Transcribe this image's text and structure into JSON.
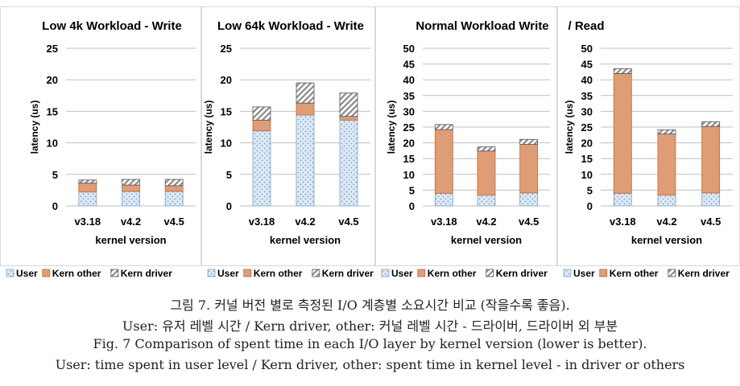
{
  "colors": {
    "user": "#dce9f7",
    "user_edge": "#7f9fc0",
    "kern_other": "#e3a27a",
    "kern_other_edge": "#b9693f",
    "kern_driver": "#9a9a9a",
    "axis": "#bfbfbf"
  },
  "chart_data": [
    {
      "type": "bar",
      "stacked": true,
      "title": "Low 4k Workload - Write",
      "xlabel": "kernel version",
      "ylabel": "latency (us)",
      "ylim": [
        0,
        25
      ],
      "yticks": [
        0,
        5,
        10,
        15,
        20,
        25
      ],
      "categories": [
        "v3.18",
        "v4.2",
        "v4.5"
      ],
      "series": [
        {
          "name": "User",
          "values": [
            2.2,
            2.3,
            2.3
          ]
        },
        {
          "name": "Kern other",
          "values": [
            1.4,
            1.0,
            0.9
          ]
        },
        {
          "name": "Kern driver",
          "values": [
            0.5,
            0.9,
            1.0
          ]
        }
      ],
      "legend": "bottom"
    },
    {
      "type": "bar",
      "stacked": true,
      "title": "Low 64k Workload - Write",
      "xlabel": "kernel version",
      "ylabel": "latency (us)",
      "ylim": [
        0,
        25
      ],
      "yticks": [
        0,
        5,
        10,
        15,
        20,
        25
      ],
      "categories": [
        "v3.18",
        "v4.2",
        "v4.5"
      ],
      "series": [
        {
          "name": "User",
          "values": [
            11.9,
            14.4,
            13.6
          ]
        },
        {
          "name": "Kern other",
          "values": [
            1.7,
            1.9,
            0.6
          ]
        },
        {
          "name": "Kern driver",
          "values": [
            2.1,
            3.2,
            3.7
          ]
        }
      ],
      "legend": "bottom"
    },
    {
      "type": "bar",
      "stacked": true,
      "title": "Normal Workload Write",
      "xlabel": "kernel version",
      "ylabel": "latency (us)",
      "ylim": [
        0,
        50
      ],
      "yticks": [
        0,
        5,
        10,
        15,
        20,
        25,
        30,
        35,
        40,
        45,
        50
      ],
      "categories": [
        "v3.18",
        "v4.2",
        "v4.5"
      ],
      "series": [
        {
          "name": "User",
          "values": [
            4.0,
            3.4,
            4.1
          ]
        },
        {
          "name": "Kern other",
          "values": [
            20.2,
            14.0,
            15.4
          ]
        },
        {
          "name": "Kern driver",
          "values": [
            1.6,
            1.3,
            1.6
          ]
        }
      ],
      "legend": "bottom"
    },
    {
      "type": "bar",
      "stacked": true,
      "title": "/  Read",
      "xlabel": "kernel version",
      "ylabel": "latency (us)",
      "ylim": [
        0,
        50
      ],
      "yticks": [
        0,
        5,
        10,
        15,
        20,
        25,
        30,
        35,
        40,
        45,
        50
      ],
      "categories": [
        "v3.18",
        "v4.2",
        "v4.5"
      ],
      "series": [
        {
          "name": "User",
          "values": [
            4.0,
            3.4,
            4.1
          ]
        },
        {
          "name": "Kern other",
          "values": [
            38.0,
            19.4,
            21.1
          ]
        },
        {
          "name": "Kern driver",
          "values": [
            1.5,
            1.3,
            1.5
          ]
        }
      ],
      "legend": "bottom"
    }
  ],
  "caption": {
    "line1": "그림 7. 커널 버전 별로 측정된 I/O 계층별 소요시간 비교 (작을수록 좋음).",
    "line2": "User: 유저 레벨 시간 / Kern driver, other: 커널 레벨 시간 - 드라이버, 드라이버 외 부분",
    "line3": "Fig. 7 Comparison of spent time in each I/O layer by kernel version (lower is better).",
    "line4": "User: time spent in user level / Kern driver, other: spent time in kernel level - in driver or others"
  }
}
